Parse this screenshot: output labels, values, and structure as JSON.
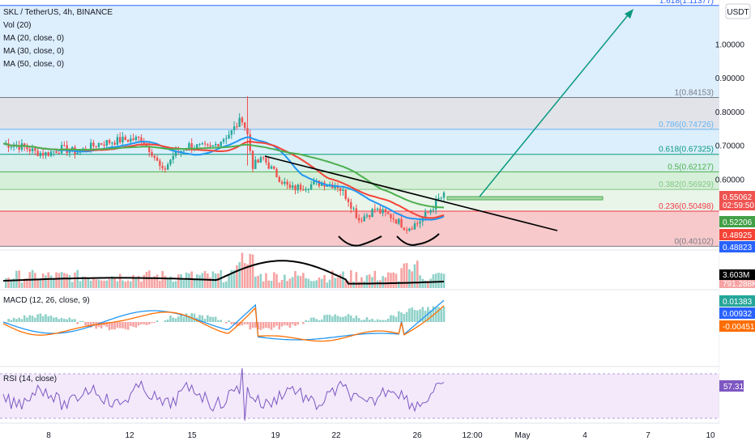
{
  "header": {
    "symbol_line": "SKL / TetherUS, 4h, BINANCE",
    "indicators": [
      "Vol (20)",
      "MA (20, close, 0)",
      "MA (30, close, 0)",
      "MA (50, close, 0)"
    ],
    "currency_button": "USDT"
  },
  "price_axis": {
    "ticks": [
      "1.00000",
      "0.90000",
      "0.80000",
      "0.70000",
      "0.60000"
    ],
    "ylim": [
      0.39,
      1.13
    ]
  },
  "time_axis": {
    "ticks": [
      "8",
      "12",
      "15",
      "19",
      "22",
      "26",
      "12:00",
      "May",
      "4",
      "7",
      "10"
    ]
  },
  "fibonacci": {
    "levels": [
      {
        "label": "0(0.40102)",
        "value": 0.40102,
        "color": "#787b86"
      },
      {
        "label": "0.236(0.50498)",
        "value": 0.50498,
        "color": "#f23645"
      },
      {
        "label": "0.382(0.56929)",
        "value": 0.56929,
        "color": "#81c784"
      },
      {
        "label": "0.5(0.62127)",
        "value": 0.62127,
        "color": "#4caf50"
      },
      {
        "label": "0.618(0.67325)",
        "value": 0.67325,
        "color": "#089981"
      },
      {
        "label": "0.786(0.74726)",
        "value": 0.74726,
        "color": "#64b5f6"
      },
      {
        "label": "1(0.84153)",
        "value": 0.84153,
        "color": "#787b86"
      },
      {
        "label": "1.618(1.11377)",
        "value": 1.11377,
        "color": "#2962ff"
      }
    ],
    "zone_colors": [
      "#f7c9cb",
      "#e9f5e9",
      "#d6efd8",
      "#d9f0ec",
      "#dceffd",
      "#e1e3e8",
      "#ddeefc"
    ]
  },
  "price_tags": [
    {
      "text": "0.55062",
      "sub": "02:59:50",
      "value": 0.55062,
      "color": "#ef5350"
    },
    {
      "text": "0.52206",
      "value": 0.52206,
      "color": "#43a047"
    },
    {
      "text": "0.48925",
      "value": 0.48925,
      "color": "#f44336"
    },
    {
      "text": "0.48823",
      "value": 0.48823,
      "color": "#2962ff"
    }
  ],
  "volume": {
    "ma_tag": "3.603M",
    "last_tag": "791.288K"
  },
  "macd": {
    "label": "MACD (12, 26, close, 9)",
    "tags": [
      {
        "text": "0.01383",
        "color": "#26a69a"
      },
      {
        "text": "0.00932",
        "color": "#2962ff"
      },
      {
        "text": "-0.00451",
        "color": "#ff6d00"
      }
    ]
  },
  "rsi": {
    "label": "RSI (14, close)",
    "tag": "57.31",
    "tag_color": "#7e57c2"
  },
  "colors": {
    "up": "#26a69a",
    "down": "#ef5350",
    "ma20": "#2196f3",
    "ma30": "#f44336",
    "ma50": "#4caf50",
    "trend": "#000000",
    "arrow": "#089981"
  },
  "chart_data": {
    "type": "candlestick",
    "title": "SKL / TetherUS, 4h, BINANCE",
    "x_range": [
      "Apr 6",
      "May 10"
    ],
    "y_range": [
      0.39,
      1.13
    ],
    "price_path": [
      [
        0,
        0.705
      ],
      [
        4,
        0.7
      ],
      [
        8,
        0.695
      ],
      [
        12,
        0.68
      ],
      [
        16,
        0.675
      ],
      [
        22,
        0.69
      ],
      [
        28,
        0.68
      ],
      [
        36,
        0.705
      ],
      [
        44,
        0.715
      ],
      [
        52,
        0.72
      ],
      [
        56,
        0.68
      ],
      [
        60,
        0.62
      ],
      [
        64,
        0.67
      ],
      [
        70,
        0.7
      ],
      [
        78,
        0.69
      ],
      [
        86,
        0.74
      ],
      [
        90,
        0.78
      ],
      [
        92,
        0.73
      ],
      [
        94,
        0.64
      ],
      [
        98,
        0.66
      ],
      [
        102,
        0.62
      ],
      [
        108,
        0.57
      ],
      [
        114,
        0.58
      ],
      [
        120,
        0.59
      ],
      [
        126,
        0.58
      ],
      [
        130,
        0.54
      ],
      [
        134,
        0.48
      ],
      [
        140,
        0.51
      ],
      [
        146,
        0.49
      ],
      [
        152,
        0.455
      ],
      [
        156,
        0.47
      ],
      [
        160,
        0.5
      ],
      [
        164,
        0.54
      ],
      [
        166,
        0.55
      ]
    ],
    "annotations": [
      "inverse head and shoulders",
      "breakout target 1.618 (1.11377)"
    ]
  }
}
